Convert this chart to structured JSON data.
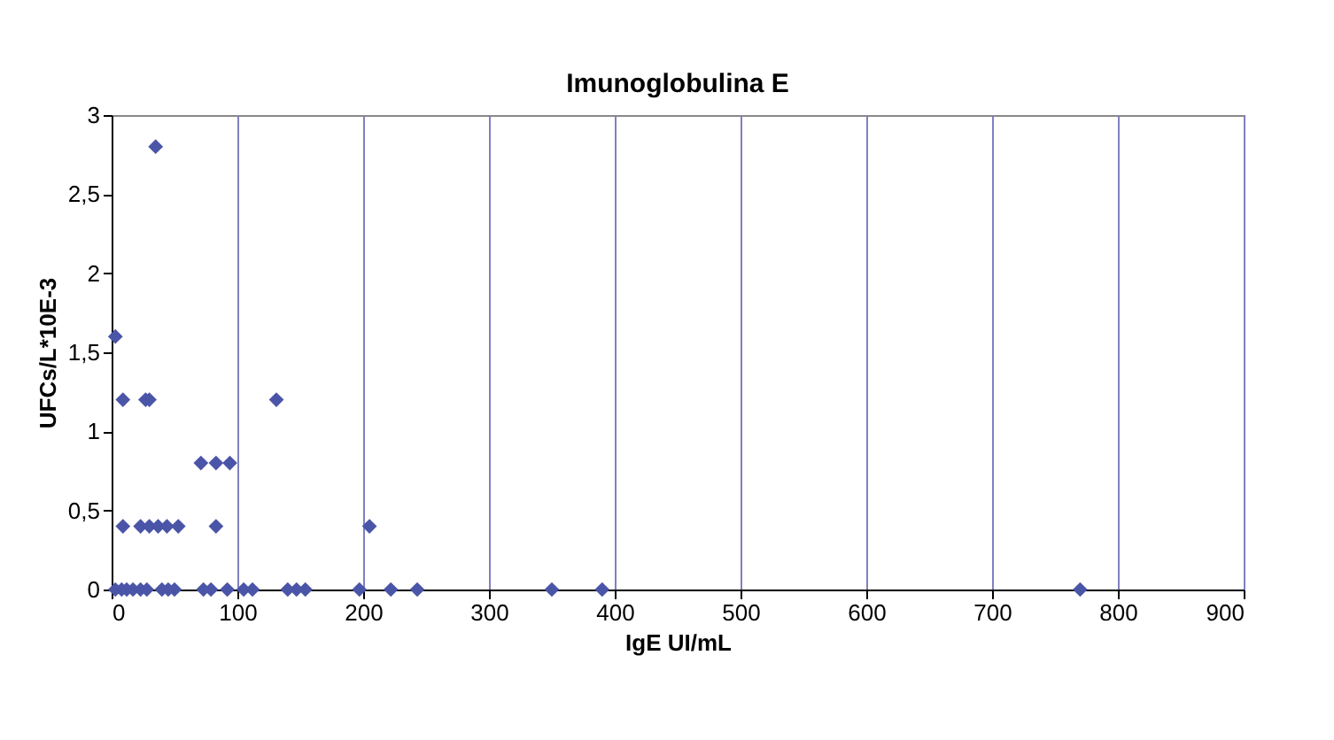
{
  "chart_data": {
    "type": "scatter",
    "title": "Imunoglobulina E",
    "xlabel": "IgE UI/mL",
    "ylabel": "UFCs/L*10E-3",
    "x": [
      3,
      9,
      27,
      30,
      131,
      35,
      71,
      83,
      94,
      9,
      23,
      30,
      37,
      44,
      53,
      83,
      205,
      3,
      8,
      12,
      17,
      23,
      28,
      40,
      45,
      50,
      73,
      79,
      92,
      105,
      112,
      140,
      147,
      154,
      197,
      222,
      243,
      350,
      390,
      770
    ],
    "series": [
      {
        "color": "#4b55a8",
        "values": [
          1.6,
          1.2,
          1.2,
          1.2,
          1.2,
          2.8,
          0.8,
          0.8,
          0.8,
          0.4,
          0.4,
          0.4,
          0.4,
          0.4,
          0.4,
          0.4,
          0.4,
          0,
          0,
          0,
          0,
          0,
          0,
          0,
          0,
          0,
          0,
          0,
          0,
          0,
          0,
          0,
          0,
          0,
          0,
          0,
          0,
          0,
          0,
          0
        ]
      }
    ],
    "xlim": [
      0,
      900
    ],
    "xticks": [
      0,
      100,
      200,
      300,
      400,
      500,
      600,
      700,
      800,
      900
    ],
    "ylim": [
      0,
      3
    ],
    "yticks": [
      0,
      {
        "value": 0.5,
        "label": "0,5"
      },
      1,
      {
        "value": 1.5,
        "label": "1,5"
      },
      2,
      {
        "value": 2.5,
        "label": "2,5"
      },
      3
    ],
    "grid": "x",
    "marker": "diamond"
  }
}
